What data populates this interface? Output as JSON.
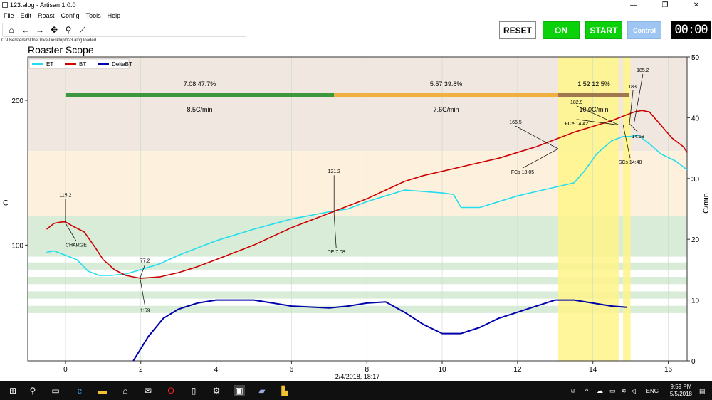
{
  "window": {
    "title": "123.alog - Artisan 1.0.0",
    "min": "—",
    "max": "❐",
    "close": "✕"
  },
  "menu": [
    "File",
    "Edit",
    "Roast",
    "Config",
    "Tools",
    "Help"
  ],
  "toolbar_icons": [
    "home-icon",
    "back-arrow-icon",
    "forward-arrow-icon",
    "pan-icon",
    "zoom-icon",
    "chart-line-icon"
  ],
  "status_path": "C:\\Users\\ersin\\OneDrive\\Desktop\\123.alog  loaded",
  "controls": {
    "reset": "RESET",
    "on": "ON",
    "start": "START",
    "control": "Control",
    "timer": "00:00"
  },
  "scope_title": "Roaster Scope",
  "colors": {
    "et": "#22ddee",
    "bt": "#cc0000",
    "delta": "#0000aa",
    "phase_green": "#3c963c",
    "phase_orange": "#f0b040",
    "phase_brown": "#a07850",
    "on_button": "#0bd10b"
  },
  "chart_data": {
    "type": "line",
    "x_label": "2/4/2018, 18:17",
    "y_label": "C",
    "y2_label": "C/min",
    "x_ticks": [
      "0",
      "2",
      "4",
      "6",
      "8",
      "10",
      "12",
      "14",
      "16"
    ],
    "y_ticks": [
      "100",
      "200"
    ],
    "y2_ticks": [
      "0",
      "10",
      "20",
      "30",
      "40",
      "50"
    ],
    "xlim": [
      -1,
      16.5
    ],
    "ylim": [
      20,
      230
    ],
    "y2lim": [
      0,
      50
    ],
    "legend": [
      "ET",
      "BT",
      "DeltaBT"
    ],
    "legend_position": "top-left",
    "phases": [
      {
        "time": "7:08",
        "pct": "47.7%",
        "rate": "8.5C/min"
      },
      {
        "time": "5:57",
        "pct": "39.8%",
        "rate": "7.6C/min"
      },
      {
        "time": "1:52",
        "pct": "12.5%",
        "rate": "10.0C/min"
      }
    ],
    "annotations": [
      {
        "label": "115.2",
        "x": 0.0,
        "y": 115.2
      },
      {
        "label": "CHARGE",
        "x": 0.0,
        "y": 115.2
      },
      {
        "label": "77.2",
        "x": 1.98,
        "y": 77.2
      },
      {
        "label": "1:59",
        "x": 1.98,
        "y": 77.2
      },
      {
        "label": "121.2",
        "x": 7.13,
        "y": 121.2
      },
      {
        "label": "DE 7:08",
        "x": 7.13,
        "y": 121.2
      },
      {
        "label": "166.5",
        "x": 13.08,
        "y": 166.5
      },
      {
        "label": "FCs 13:05",
        "x": 13.08,
        "y": 166.5
      },
      {
        "label": "FCe 14:42",
        "x": 14.7,
        "y": 182.9
      },
      {
        "label": "182.9",
        "x": 14.7,
        "y": 182.9
      },
      {
        "label": "183.",
        "x": 14.97,
        "y": 183.8
      },
      {
        "label": "14:58",
        "x": 14.97,
        "y": 183.8
      },
      {
        "label": "185.2",
        "x": 15.1,
        "y": 185.2
      },
      {
        "label": "SCs 14:48",
        "x": 14.8,
        "y": 183.2
      }
    ],
    "series": [
      {
        "name": "ET",
        "x": [
          -0.5,
          -0.3,
          0,
          0.3,
          0.6,
          0.9,
          1.2,
          1.6,
          2,
          2.5,
          3,
          4,
          5,
          6,
          7,
          7.5,
          8,
          8.5,
          9,
          9.5,
          10,
          10.3,
          10.5,
          11,
          11.5,
          12,
          12.5,
          13,
          13.5,
          13.8,
          14.1,
          14.5,
          14.8,
          15,
          15.2,
          15.5,
          15.8,
          16.2,
          16.5
        ],
        "y": [
          95,
          96,
          93,
          90,
          82,
          79,
          79,
          80,
          83,
          87,
          93,
          103,
          111,
          118,
          123,
          125,
          130,
          134,
          138,
          137,
          136,
          135,
          126,
          126,
          130,
          134,
          137,
          140,
          143,
          152,
          163,
          172,
          175,
          175,
          176,
          170,
          163,
          158,
          152
        ]
      },
      {
        "name": "BT",
        "x": [
          -0.5,
          -0.3,
          -0.1,
          0,
          0.2,
          0.5,
          0.8,
          1,
          1.3,
          1.6,
          2,
          2.5,
          3,
          3.5,
          4,
          5,
          6,
          7,
          7.5,
          8,
          8.5,
          9,
          9.5,
          10,
          10.5,
          11,
          11.5,
          12,
          12.5,
          13,
          13.5,
          14,
          14.5,
          14.9,
          15.1,
          15.3,
          15.5,
          15.8,
          16.1,
          16.4,
          16.5
        ],
        "y": [
          111,
          115,
          116,
          116,
          113,
          109,
          98,
          90,
          83,
          79,
          77,
          78,
          81,
          85,
          90,
          100,
          112,
          122,
          127,
          132,
          138,
          144,
          148,
          151,
          154,
          157,
          160,
          164,
          168,
          173,
          178,
          182,
          186,
          190,
          192,
          193,
          192,
          183,
          174,
          168,
          164
        ]
      },
      {
        "name": "DeltaBT",
        "x": [
          1.8,
          2.2,
          2.6,
          3,
          3.5,
          4,
          4.5,
          5,
          6,
          7,
          7.5,
          8,
          8.5,
          9,
          9.5,
          10,
          10.5,
          11,
          11.5,
          12,
          12.5,
          13,
          13.5,
          14,
          14.5,
          14.9
        ],
        "y": [
          0,
          4,
          7,
          8.5,
          9.5,
          10,
          10,
          10,
          9,
          8.7,
          9,
          9.5,
          9.7,
          8,
          6,
          4.5,
          4.5,
          5.5,
          7,
          8,
          9,
          10,
          10,
          9.5,
          9,
          8.8
        ]
      }
    ]
  },
  "taskbar": {
    "lang": "ENG",
    "time": "9:59 PM",
    "date": "5/5/2018"
  }
}
